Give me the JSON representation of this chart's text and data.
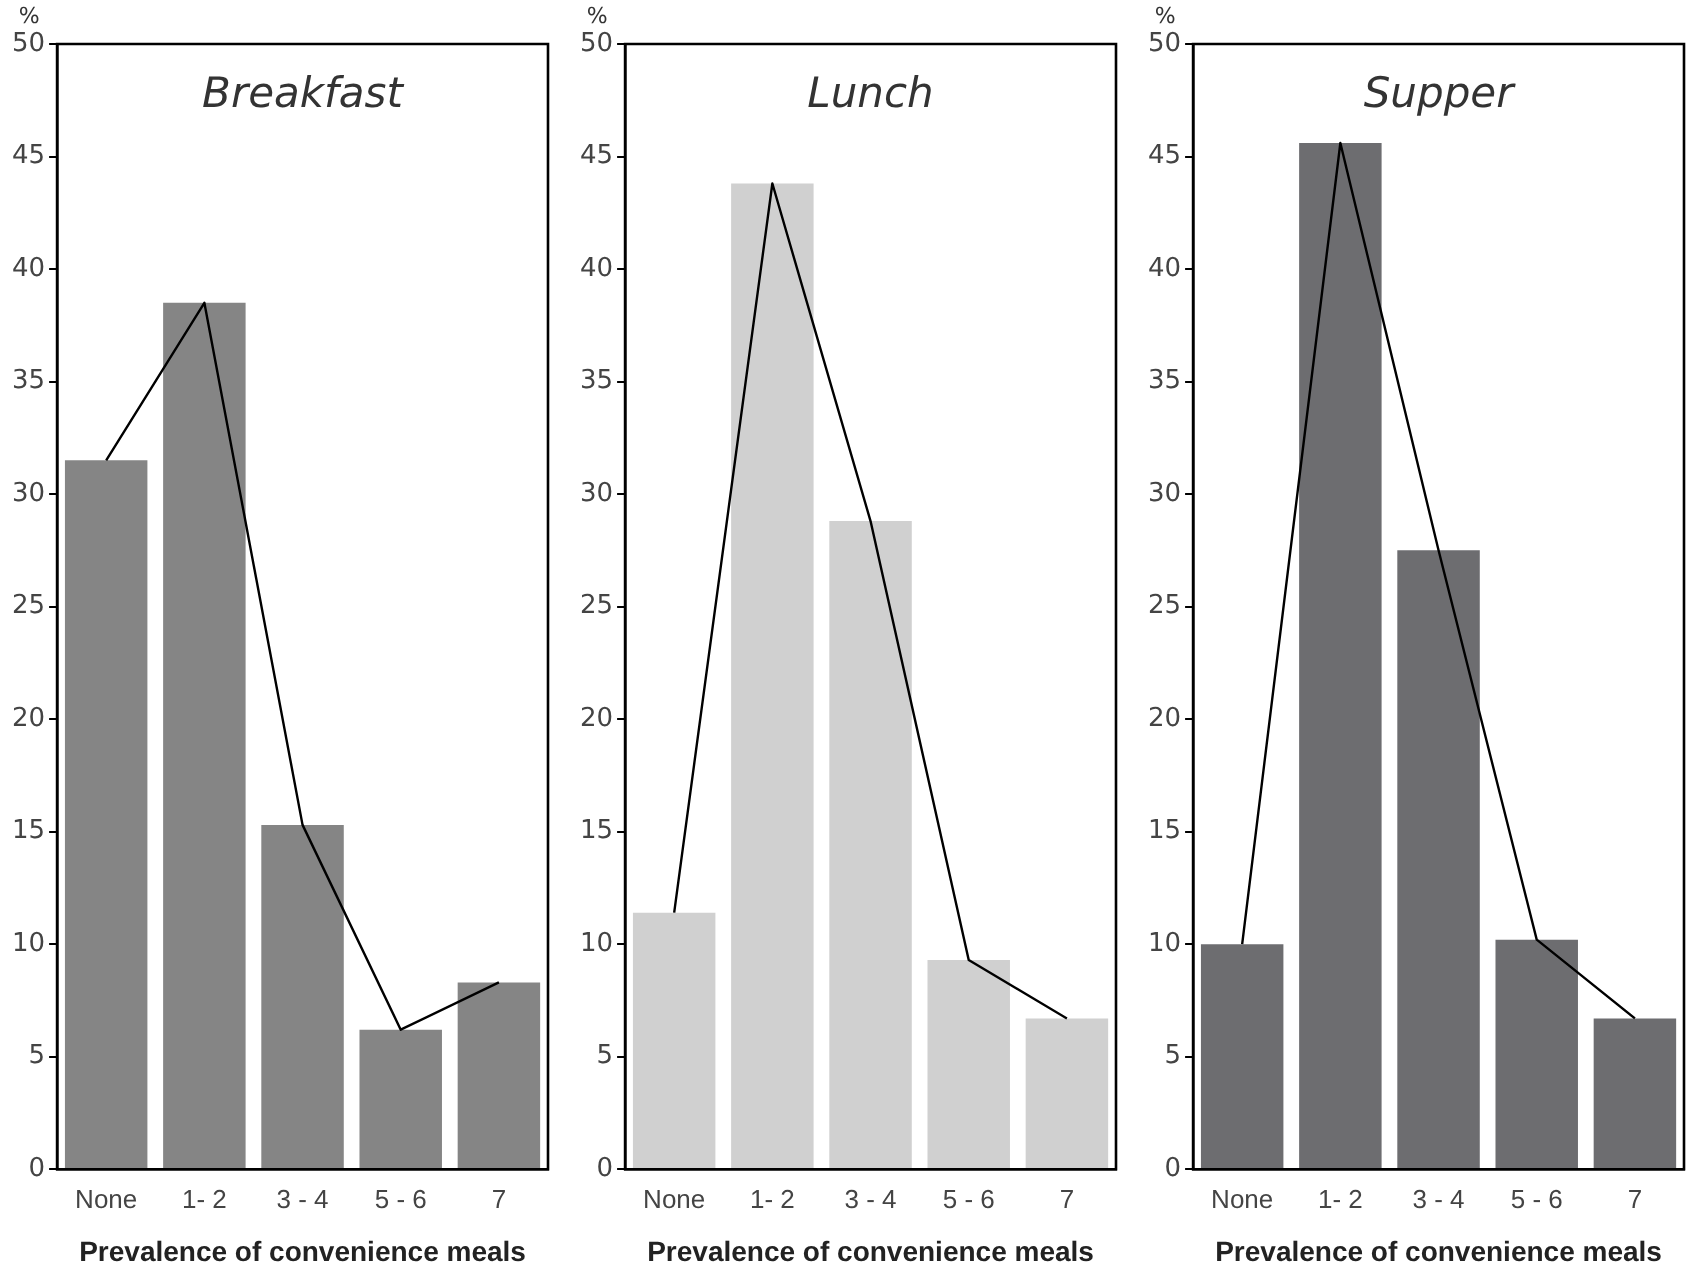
{
  "chart_data": [
    {
      "type": "bar",
      "title": "Breakfast",
      "xlabel": "Prevalence of convenience meals",
      "ylabel": "%",
      "categories": [
        "None",
        "1- 2",
        "3 - 4",
        "5 - 6",
        "7"
      ],
      "series": [
        {
          "type": "bar",
          "color": "#858585",
          "values": [
            31.5,
            38.5,
            15.3,
            6.2,
            8.3
          ]
        },
        {
          "type": "line",
          "color": "#000000",
          "values": [
            31.5,
            38.5,
            15.3,
            6.2,
            8.3
          ]
        }
      ],
      "ylim": [
        0,
        50
      ],
      "yticks": [
        0,
        5,
        10,
        15,
        20,
        25,
        30,
        35,
        40,
        45,
        50
      ],
      "grid": false,
      "legend": false,
      "marker": "none"
    },
    {
      "type": "bar",
      "title": "Lunch",
      "xlabel": "Prevalence of convenience meals",
      "ylabel": "%",
      "categories": [
        "None",
        "1- 2",
        "3 - 4",
        "5 - 6",
        "7"
      ],
      "series": [
        {
          "type": "bar",
          "color": "#d0d0d0",
          "values": [
            11.4,
            43.8,
            28.8,
            9.3,
            6.7
          ]
        },
        {
          "type": "line",
          "color": "#000000",
          "values": [
            11.4,
            43.8,
            28.8,
            9.3,
            6.7
          ]
        }
      ],
      "ylim": [
        0,
        50
      ],
      "yticks": [
        0,
        5,
        10,
        15,
        20,
        25,
        30,
        35,
        40,
        45,
        50
      ],
      "grid": false,
      "legend": false,
      "marker": "none"
    },
    {
      "type": "bar",
      "title": "Supper",
      "xlabel": "Prevalence of convenience meals",
      "ylabel": "%",
      "categories": [
        "None",
        "1- 2",
        "3 - 4",
        "5 - 6",
        "7"
      ],
      "series": [
        {
          "type": "bar",
          "color": "#6d6d70",
          "values": [
            10.0,
            45.6,
            27.5,
            10.2,
            6.7
          ]
        },
        {
          "type": "line",
          "color": "#000000",
          "values": [
            10.0,
            45.6,
            27.5,
            10.2,
            6.7
          ]
        }
      ],
      "ylim": [
        0,
        50
      ],
      "yticks": [
        0,
        5,
        10,
        15,
        20,
        25,
        30,
        35,
        40,
        45,
        50
      ],
      "grid": false,
      "legend": false,
      "marker": "none"
    }
  ]
}
